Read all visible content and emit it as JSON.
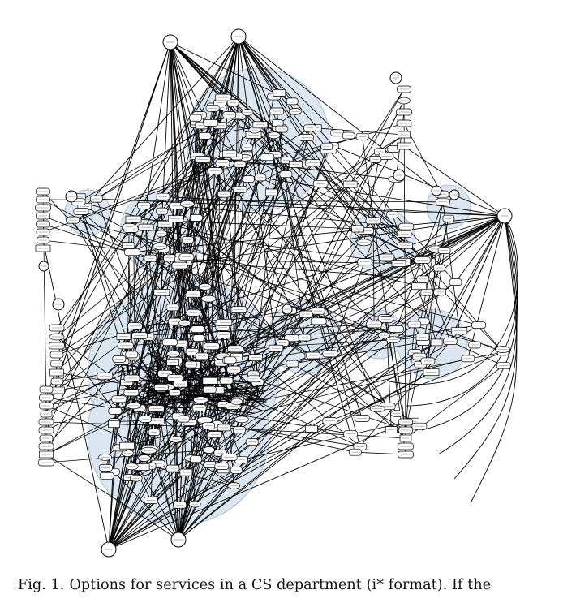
{
  "figure": {
    "label": "Fig. 1.",
    "caption": "Options for services in a CS department (i* format). If the"
  },
  "diagram": {
    "notation": "i*",
    "colors": {
      "boundary_fill": "#dce6f1",
      "boundary_stroke": "#9fb3c8",
      "edge": "#000000",
      "node_fill": "#ffffff",
      "node_stroke": "#000000"
    }
  }
}
